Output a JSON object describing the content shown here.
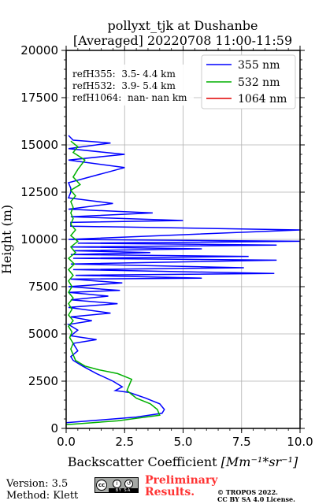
{
  "chart_data": {
    "type": "line",
    "title": "pollyxt_tjk at Dushanbe",
    "subtitle": "[Averaged] 20220708 11:00-11:59",
    "xlabel": "Backscatter Coefficient",
    "xlabel_unit": "[Mm^{-1}*sr^{-1}]",
    "ylabel": "Height (m)",
    "xlim": [
      0,
      10
    ],
    "ylim": [
      0,
      20000
    ],
    "xticks": [
      "0.0",
      "2.5",
      "5.0",
      "7.5",
      "10.0"
    ],
    "xtick_values": [
      0,
      2.5,
      5,
      7.5,
      10
    ],
    "yticks": [
      "0",
      "2500",
      "5000",
      "7500",
      "10000",
      "12500",
      "15000",
      "17500",
      "20000"
    ],
    "ytick_values": [
      0,
      2500,
      5000,
      7500,
      10000,
      12500,
      15000,
      17500,
      20000
    ],
    "grid": true,
    "legend_position": "top-right",
    "annotations": [
      "refH355:  3.5- 4.4 km",
      "refH532:  3.9- 5.4 km",
      "refH1064:  nan- nan km"
    ],
    "series": [
      {
        "name": "355 nm",
        "color": "#0000ff",
        "x": [
          0.0,
          3.0,
          4.1,
          4.2,
          4.0,
          3.4,
          2.7,
          2.1,
          2.4,
          2.0,
          1.3,
          0.7,
          0.3,
          0.2,
          0.5,
          0.3,
          1.3,
          0.2,
          0.5,
          0.1,
          1.1,
          0.2,
          1.9,
          0.1,
          2.2,
          0.2,
          1.8,
          0.1,
          2.3,
          0.1,
          2.4,
          0.2,
          5.8,
          0.4,
          8.9,
          0.3,
          7.6,
          0.2,
          9.0,
          0.3,
          7.8,
          0.2,
          3.6,
          0.3,
          5.8,
          0.2,
          9.0,
          0.5,
          10.0,
          0.1,
          10.0,
          0.2,
          0.2,
          5.0,
          0.2,
          3.7,
          0.1,
          2.0,
          0.1,
          0.2,
          0.2,
          0.1,
          2.5,
          0.1,
          2.5,
          0.1,
          1.9,
          0.3,
          0.1
        ],
        "y": [
          300,
          600,
          800,
          1000,
          1300,
          1600,
          1900,
          2000,
          2200,
          2500,
          2900,
          3300,
          3600,
          3800,
          4100,
          4500,
          4700,
          4900,
          5200,
          5500,
          5700,
          5900,
          6100,
          6400,
          6600,
          6800,
          7000,
          7200,
          7300,
          7500,
          7700,
          7900,
          7950,
          8100,
          8200,
          8400,
          8500,
          8700,
          8900,
          9000,
          9100,
          9200,
          9300,
          9400,
          9500,
          9600,
          9700,
          9800,
          9900,
          10000,
          10500,
          10700,
          10900,
          11000,
          11200,
          11400,
          11600,
          11900,
          12200,
          12500,
          12700,
          13000,
          13800,
          14200,
          14500,
          14800,
          15100,
          15250,
          15500
        ]
      },
      {
        "name": "532 nm",
        "color": "#00b000",
        "x": [
          0.0,
          2.2,
          4.0,
          3.9,
          3.6,
          3.0,
          2.6,
          2.8,
          2.2,
          1.4,
          0.8,
          0.4,
          0.3,
          0.2,
          0.3,
          0.15,
          0.25,
          0.1,
          0.3,
          0.1,
          0.25,
          0.1,
          0.3,
          0.1,
          0.25,
          0.1,
          0.3,
          0.1,
          0.35,
          0.1,
          0.4,
          0.2,
          0.5,
          0.2,
          0.4,
          0.2,
          0.3,
          0.2,
          0.3,
          0.2,
          0.4,
          0.2,
          0.6,
          0.3,
          0.5,
          0.8,
          0.3,
          0.5,
          0.2
        ],
        "y": [
          200,
          400,
          700,
          1000,
          1300,
          1600,
          2000,
          2600,
          2900,
          3100,
          3300,
          3600,
          3900,
          4200,
          4500,
          4800,
          5100,
          5400,
          5700,
          6000,
          6300,
          6600,
          6900,
          7200,
          7500,
          7800,
          8100,
          8400,
          8700,
          9000,
          9300,
          9600,
          9900,
          10200,
          10500,
          10800,
          11100,
          11400,
          11700,
          12000,
          12300,
          12600,
          12900,
          13300,
          13700,
          14200,
          14600,
          14900,
          15200
        ]
      },
      {
        "name": "1064 nm",
        "color": "#e00000",
        "x": [],
        "y": []
      }
    ]
  },
  "footer": {
    "version": "Version: 3.5",
    "method": "Method: Klett",
    "preliminary_line1": "Preliminary",
    "preliminary_line2": "Results.",
    "copyright_line1": "© TROPOS 2022.",
    "copyright_line2": "CC BY SA 4.0 License.",
    "preliminary_color": "#ff3333",
    "badge_cc": "cc",
    "badge_text": "BY SA"
  }
}
